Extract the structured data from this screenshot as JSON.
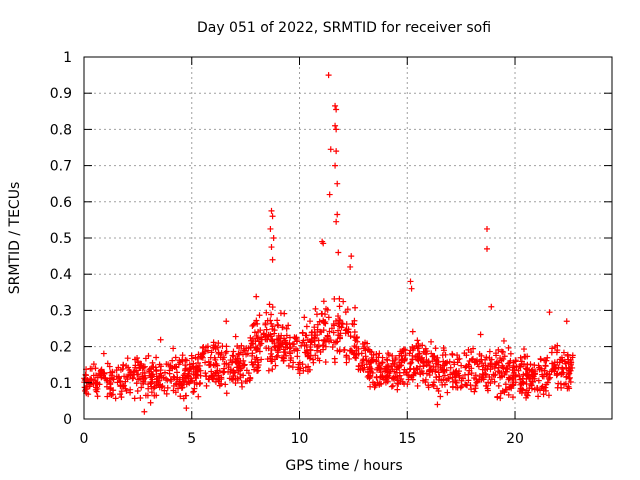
{
  "chart_data": {
    "type": "scatter",
    "title": "Day 051 of 2022, SRMTID for receiver sofi",
    "xlabel": "GPS time / hours",
    "ylabel": "SRMTID / TECUs",
    "xlim": [
      0,
      24.5
    ],
    "ylim": [
      0,
      1
    ],
    "xticks": [
      0,
      5,
      10,
      15,
      20
    ],
    "xtick_labels": [
      "0",
      "5",
      "10",
      "15",
      "20"
    ],
    "yticks": [
      0,
      0.1,
      0.2,
      0.3,
      0.4,
      0.5,
      0.6,
      0.7,
      0.8,
      0.9,
      1
    ],
    "ytick_labels": [
      "0",
      "0.1",
      "0.2",
      "0.3",
      "0.4",
      "0.5",
      "0.6",
      "0.7",
      "0.8",
      "0.9",
      "1"
    ],
    "grid": true,
    "marker": "+",
    "marker_color": "#ff0000",
    "x_data_extent": [
      0,
      22.7
    ],
    "envelope_hours": [
      0,
      1,
      2,
      3,
      4,
      5,
      6,
      7,
      7.5,
      8,
      8.5,
      9,
      9.5,
      10,
      10.5,
      11,
      11.5,
      12,
      12.5,
      13,
      13.5,
      14,
      14.5,
      15,
      15.5,
      16,
      17,
      18,
      19,
      20,
      21,
      22,
      22.7
    ],
    "envelope_low": [
      0.05,
      0.05,
      0.05,
      0.04,
      0.05,
      0.05,
      0.06,
      0.07,
      0.08,
      0.1,
      0.12,
      0.13,
      0.12,
      0.1,
      0.1,
      0.12,
      0.14,
      0.13,
      0.12,
      0.09,
      0.08,
      0.07,
      0.07,
      0.08,
      0.07,
      0.06,
      0.06,
      0.06,
      0.05,
      0.05,
      0.05,
      0.06,
      0.07
    ],
    "envelope_high": [
      0.15,
      0.17,
      0.18,
      0.18,
      0.18,
      0.2,
      0.22,
      0.22,
      0.24,
      0.3,
      0.32,
      0.3,
      0.26,
      0.24,
      0.3,
      0.35,
      0.36,
      0.34,
      0.3,
      0.22,
      0.2,
      0.19,
      0.2,
      0.24,
      0.22,
      0.2,
      0.2,
      0.2,
      0.22,
      0.19,
      0.18,
      0.22,
      0.2
    ],
    "notable_points": [
      {
        "x": 11.35,
        "y": 0.95
      },
      {
        "x": 11.65,
        "y": 0.865
      },
      {
        "x": 11.7,
        "y": 0.855
      },
      {
        "x": 11.65,
        "y": 0.81
      },
      {
        "x": 11.7,
        "y": 0.8
      },
      {
        "x": 11.45,
        "y": 0.745
      },
      {
        "x": 11.7,
        "y": 0.74
      },
      {
        "x": 11.65,
        "y": 0.7
      },
      {
        "x": 11.75,
        "y": 0.65
      },
      {
        "x": 11.4,
        "y": 0.62
      },
      {
        "x": 11.75,
        "y": 0.565
      },
      {
        "x": 11.7,
        "y": 0.545
      },
      {
        "x": 8.7,
        "y": 0.575
      },
      {
        "x": 8.75,
        "y": 0.56
      },
      {
        "x": 8.65,
        "y": 0.525
      },
      {
        "x": 8.8,
        "y": 0.5
      },
      {
        "x": 8.7,
        "y": 0.475
      },
      {
        "x": 8.75,
        "y": 0.44
      },
      {
        "x": 11.05,
        "y": 0.49
      },
      {
        "x": 11.1,
        "y": 0.485
      },
      {
        "x": 11.8,
        "y": 0.46
      },
      {
        "x": 12.4,
        "y": 0.45
      },
      {
        "x": 12.35,
        "y": 0.42
      },
      {
        "x": 18.7,
        "y": 0.525
      },
      {
        "x": 18.7,
        "y": 0.47
      },
      {
        "x": 15.15,
        "y": 0.38
      },
      {
        "x": 15.2,
        "y": 0.36
      },
      {
        "x": 18.9,
        "y": 0.31
      },
      {
        "x": 21.6,
        "y": 0.295
      },
      {
        "x": 22.4,
        "y": 0.27
      },
      {
        "x": 6.6,
        "y": 0.27
      },
      {
        "x": 2.8,
        "y": 0.02
      },
      {
        "x": 4.75,
        "y": 0.03
      },
      {
        "x": 16.4,
        "y": 0.04
      }
    ]
  }
}
